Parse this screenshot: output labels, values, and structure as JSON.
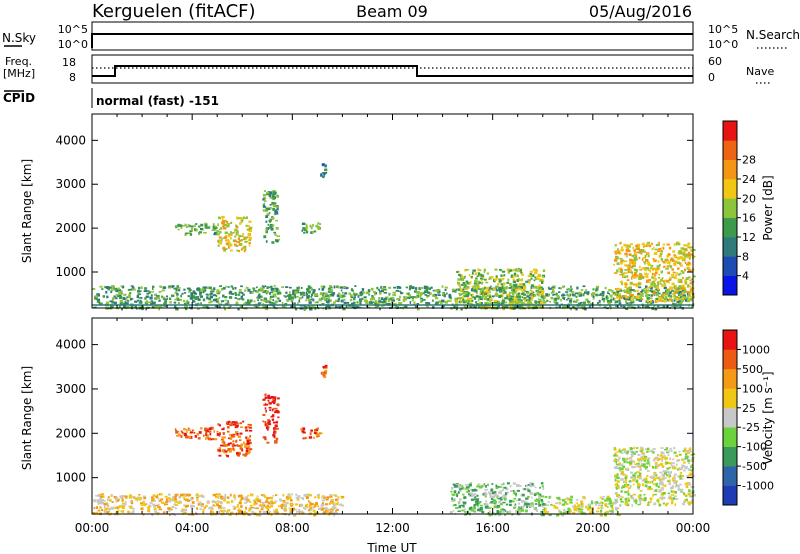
{
  "header": {
    "station": "Kerguelen (fitACF)",
    "beam": "Beam 09",
    "date": "05/Aug/2016"
  },
  "status_panel": {
    "nsky_label": "N.Sky",
    "nsearch_label": "N.Search",
    "freq_label_line1": "Freq.",
    "freq_label_line2": "[MHz]",
    "nave_label": "Nave",
    "cpid_label": "CPID",
    "cpid_text": "normal (fast) -151",
    "noise_ticks": [
      "10^5",
      "10^0"
    ],
    "freq_ticks": [
      "18",
      "8"
    ],
    "nave_ticks": [
      "60",
      "0"
    ]
  },
  "chart_data": [
    {
      "type": "heatmap",
      "panel": "power",
      "ylabel": "Slant Range [km]",
      "colorbar_label": "Power [dB]",
      "ylim": [
        180,
        4600
      ],
      "xlim": [
        0,
        24
      ],
      "yticks": [
        "1000",
        "2000",
        "3000",
        "4000"
      ],
      "colorbar_ticks": [
        "4",
        "8",
        "12",
        "16",
        "20",
        "24",
        "28"
      ],
      "colorbar_colors": [
        "#0a14e6",
        "#1c4cb4",
        "#2f7a7a",
        "#3c9a4a",
        "#8cc43c",
        "#f0c814",
        "#f49614",
        "#ec6414",
        "#e81414"
      ],
      "regions": [
        {
          "t0": 0.0,
          "t1": 24.0,
          "r0": 180,
          "r1": 700,
          "level": 3
        },
        {
          "t0": 3.3,
          "t1": 5.0,
          "r0": 1880,
          "r1": 2130,
          "level": 3
        },
        {
          "t0": 5.0,
          "t1": 6.3,
          "r0": 1500,
          "r1": 2280,
          "level": 5
        },
        {
          "t0": 6.8,
          "t1": 7.4,
          "r0": 1700,
          "r1": 2880,
          "level": 3
        },
        {
          "t0": 8.3,
          "t1": 9.1,
          "r0": 1900,
          "r1": 2150,
          "level": 3
        },
        {
          "t0": 9.1,
          "t1": 9.3,
          "r0": 3200,
          "r1": 3550,
          "level": 2
        },
        {
          "t0": 14.5,
          "t1": 18.0,
          "r0": 180,
          "r1": 1100,
          "level": 4
        },
        {
          "t0": 20.8,
          "t1": 24.0,
          "r0": 350,
          "r1": 1700,
          "level": 5
        }
      ]
    },
    {
      "type": "heatmap",
      "panel": "velocity",
      "ylabel": "Slant Range [km]",
      "colorbar_label": "Velocity [m s⁻¹]",
      "ylim": [
        180,
        4600
      ],
      "xlim": [
        0,
        24
      ],
      "yticks": [
        "1000",
        "2000",
        "3000",
        "4000"
      ],
      "xticks": [
        "00:00",
        "04:00",
        "08:00",
        "12:00",
        "16:00",
        "20:00",
        "00:00"
      ],
      "xlabel": "Time UT",
      "colorbar_ticks": [
        "1000",
        "500",
        "100",
        "25",
        "-25",
        "-100",
        "-500",
        "-1000"
      ],
      "colorbar_colors": [
        "#1e3cb4",
        "#2e64a8",
        "#3a9a5a",
        "#6cd23c",
        "#c8c8c8",
        "#f0c814",
        "#f49a14",
        "#ec5a14",
        "#e81414"
      ],
      "regions": [
        {
          "t0": 0.0,
          "t1": 10.0,
          "r0": 180,
          "r1": 650,
          "level": 5
        },
        {
          "t0": 3.3,
          "t1": 5.0,
          "r0": 1880,
          "r1": 2150,
          "level": 7
        },
        {
          "t0": 5.0,
          "t1": 6.3,
          "r0": 1500,
          "r1": 2300,
          "level": 7
        },
        {
          "t0": 6.8,
          "t1": 7.4,
          "r0": 1800,
          "r1": 2900,
          "level": 8
        },
        {
          "t0": 8.3,
          "t1": 9.1,
          "r0": 1900,
          "r1": 2150,
          "level": 7
        },
        {
          "t0": 9.1,
          "t1": 9.3,
          "r0": 3300,
          "r1": 3550,
          "level": 7
        },
        {
          "t0": 14.3,
          "t1": 18.0,
          "r0": 180,
          "r1": 900,
          "level": 3
        },
        {
          "t0": 18.0,
          "t1": 21.0,
          "r0": 180,
          "r1": 600,
          "level": 4
        },
        {
          "t0": 20.8,
          "t1": 24.0,
          "r0": 400,
          "r1": 1700,
          "level": 4
        }
      ]
    }
  ]
}
